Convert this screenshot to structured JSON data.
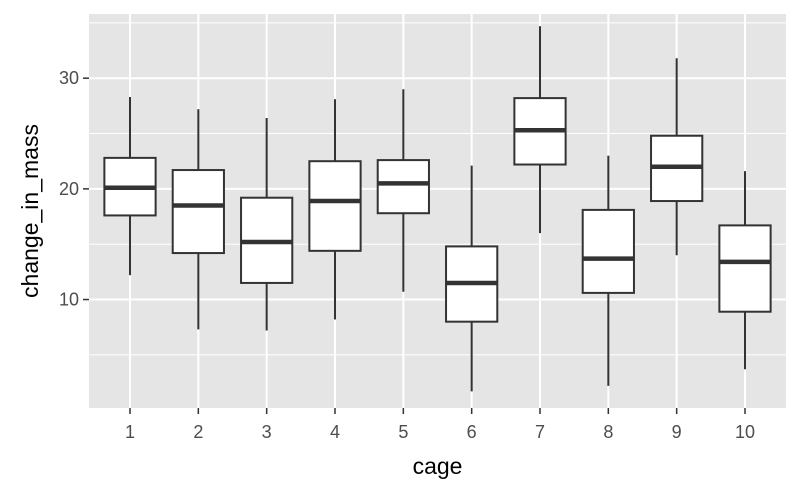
{
  "chart_data": {
    "type": "boxplot",
    "xlabel": "cage",
    "ylabel": "change_in_mass",
    "ylim": [
      0.2,
      35.8
    ],
    "y_ticks": [
      10,
      20,
      30
    ],
    "categories": [
      "1",
      "2",
      "3",
      "4",
      "5",
      "6",
      "7",
      "8",
      "9",
      "10"
    ],
    "boxes": [
      {
        "label": "1",
        "whisker_low": 12.2,
        "q1": 17.6,
        "median": 20.1,
        "q3": 22.8,
        "whisker_high": 28.3
      },
      {
        "label": "2",
        "whisker_low": 7.3,
        "q1": 14.2,
        "median": 18.5,
        "q3": 21.7,
        "whisker_high": 27.2
      },
      {
        "label": "3",
        "whisker_low": 7.2,
        "q1": 11.5,
        "median": 15.2,
        "q3": 19.2,
        "whisker_high": 26.4
      },
      {
        "label": "4",
        "whisker_low": 8.2,
        "q1": 14.4,
        "median": 18.9,
        "q3": 22.5,
        "whisker_high": 28.1
      },
      {
        "label": "5",
        "whisker_low": 10.7,
        "q1": 17.8,
        "median": 20.5,
        "q3": 22.6,
        "whisker_high": 29.0
      },
      {
        "label": "6",
        "whisker_low": 1.7,
        "q1": 8.0,
        "median": 11.5,
        "q3": 14.8,
        "whisker_high": 22.1
      },
      {
        "label": "7",
        "whisker_low": 16.0,
        "q1": 22.2,
        "median": 25.3,
        "q3": 28.2,
        "whisker_high": 34.7
      },
      {
        "label": "8",
        "whisker_low": 2.2,
        "q1": 10.6,
        "median": 13.7,
        "q3": 18.1,
        "whisker_high": 23.0
      },
      {
        "label": "9",
        "whisker_low": 14.0,
        "q1": 18.9,
        "median": 22.0,
        "q3": 24.8,
        "whisker_high": 31.8
      },
      {
        "label": "10",
        "whisker_low": 3.7,
        "q1": 8.9,
        "median": 13.4,
        "q3": 16.7,
        "whisker_high": 21.6
      }
    ],
    "grid": true,
    "legend": "none",
    "colors": {
      "panel_background": "#e5e5e5",
      "grid_line": "#ffffff",
      "box_fill": "#ffffff",
      "box_stroke": "#333333",
      "tick_text": "#4d4d4d",
      "axis_title": "#000000"
    }
  }
}
